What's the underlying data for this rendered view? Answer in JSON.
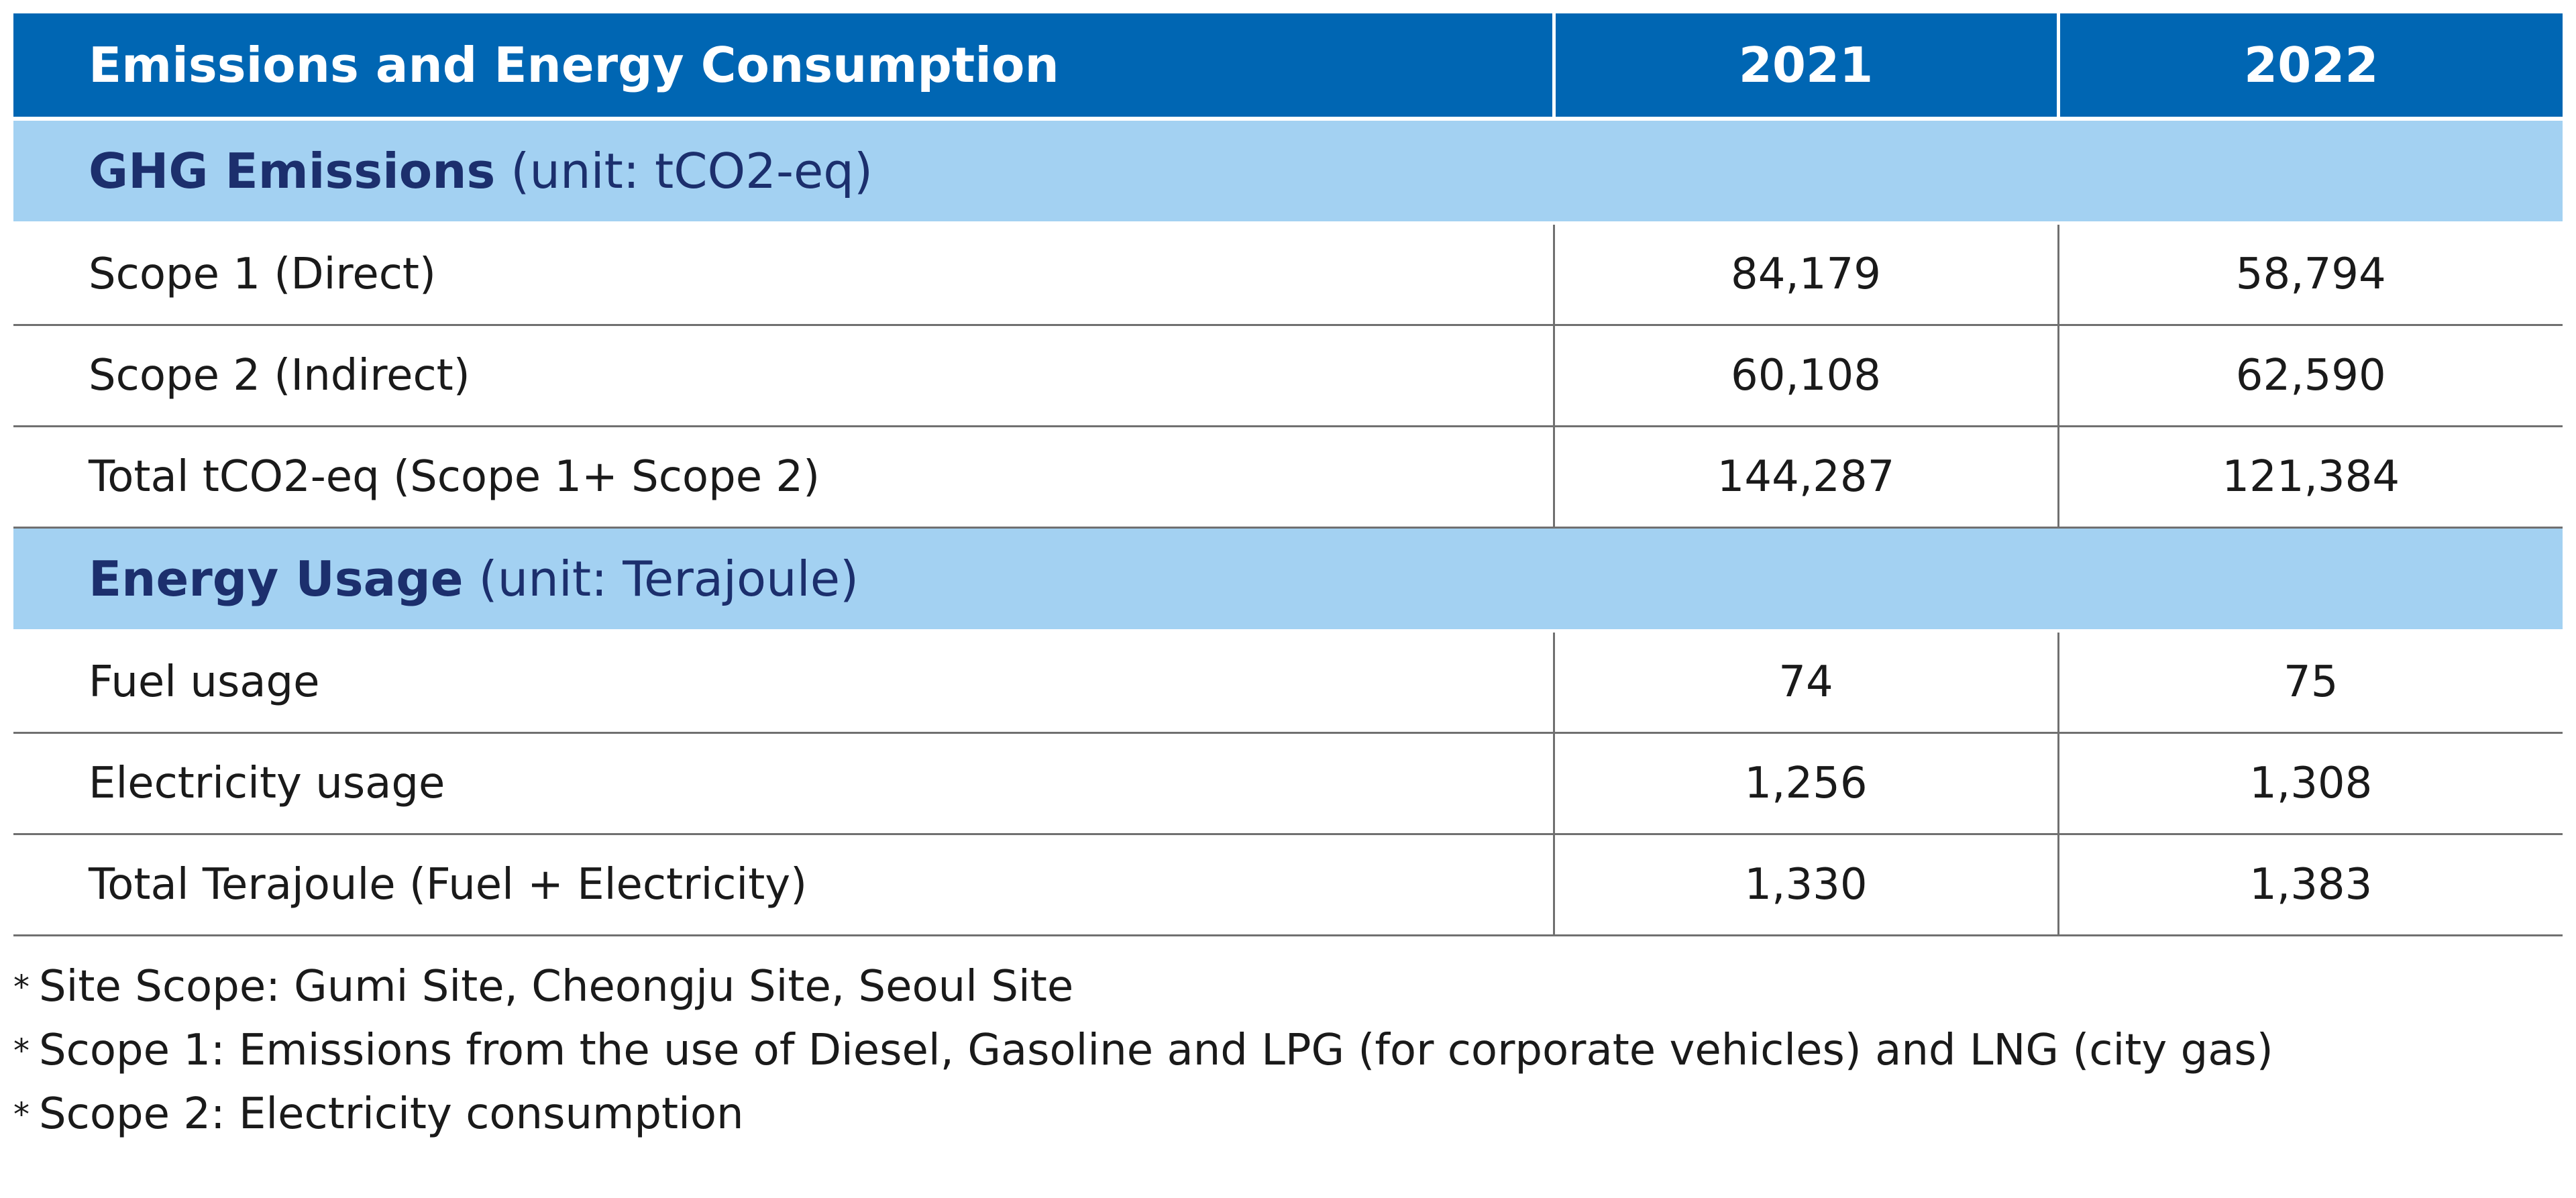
{
  "table": {
    "header": {
      "title": "Emissions and Energy Consumption",
      "years": [
        "2021",
        "2022"
      ]
    },
    "sections": [
      {
        "title": "GHG Emissions",
        "unit": "(unit: tCO2-eq)",
        "rows": [
          {
            "label": "Scope 1 (Direct)",
            "values": [
              "84,179",
              "58,794"
            ]
          },
          {
            "label": "Scope 2 (Indirect)",
            "values": [
              "60,108",
              "62,590"
            ]
          },
          {
            "label": "Total tCO2-eq (Scope 1+ Scope 2)",
            "values": [
              "144,287",
              "121,384"
            ]
          }
        ]
      },
      {
        "title": "Energy Usage",
        "unit": "(unit: Terajoule)",
        "rows": [
          {
            "label": "Fuel usage",
            "values": [
              "74",
              "75"
            ]
          },
          {
            "label": "Electricity usage",
            "values": [
              "1,256",
              "1,308"
            ]
          },
          {
            "label": "Total Terajoule (Fuel + Electricity)",
            "values": [
              "1,330",
              "1,383"
            ]
          }
        ]
      }
    ]
  },
  "notes": {
    "marker": "*",
    "items": [
      "Site Scope: Gumi Site, Cheongju Site, Seoul Site",
      "Scope 1: Emissions from the use of Diesel, Gasoline and LPG (for corporate vehicles) and LNG (city gas)",
      "Scope 2: Electricity consumption"
    ]
  },
  "colors": {
    "header_bg": "#0066b3",
    "section_bg": "#a3d1f2",
    "section_text": "#1c2f6d",
    "rule": "#707070"
  }
}
